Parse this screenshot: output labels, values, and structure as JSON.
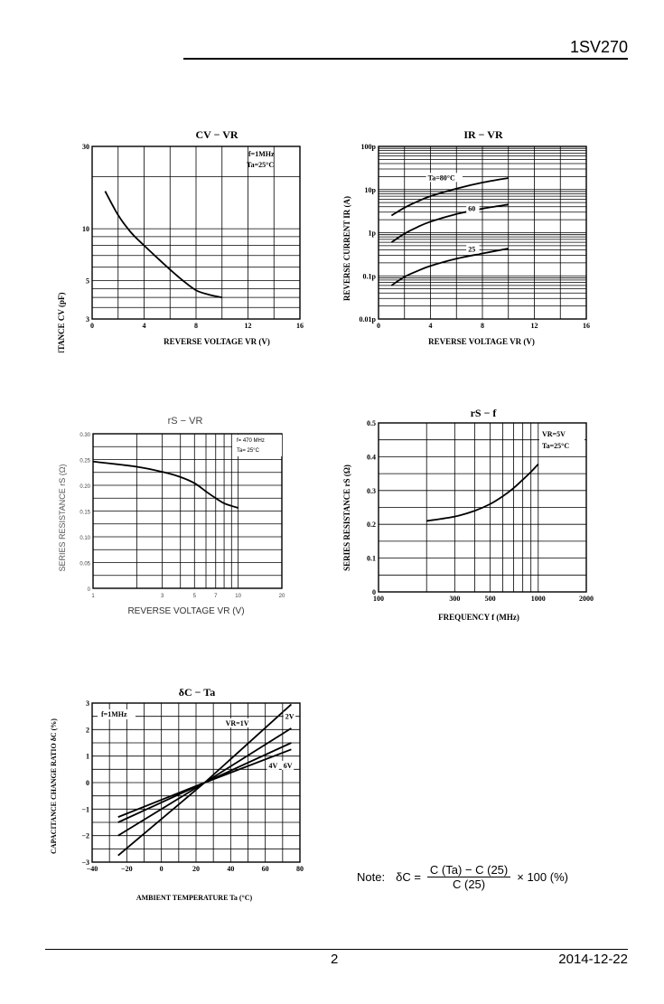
{
  "header": {
    "part_number": "1SV270"
  },
  "footer": {
    "page": "2",
    "date": "2014-12-22"
  },
  "note": {
    "prefix": "Note:",
    "lhs": "δC =",
    "numerator": "C (Ta) − C (25)",
    "denominator": "C (25)",
    "suffix": "× 100   (%)"
  },
  "chart_data": [
    {
      "id": "cv_vr",
      "type": "line",
      "title": "CV − VR",
      "xlabel": "REVERSE VOLTAGE  VR  (V)",
      "ylabel": "CAPACITANCE  CV  (pF)",
      "xlim": [
        0,
        16
      ],
      "ylim": [
        3,
        30
      ],
      "yscale": "log",
      "x_ticks": [
        "0",
        "4",
        "8",
        "12",
        "16"
      ],
      "y_ticks": [
        "3",
        "5",
        "10",
        "30"
      ],
      "conditions": [
        "f=1MHz",
        "Ta=25°C"
      ],
      "grid": true,
      "series": [
        {
          "x": [
            1,
            2,
            3,
            4,
            5,
            6,
            7,
            8,
            9,
            10
          ],
          "y": [
            16.5,
            12.0,
            9.5,
            8.0,
            6.8,
            5.8,
            5.0,
            4.4,
            4.15,
            4.0
          ]
        }
      ]
    },
    {
      "id": "ir_vr",
      "type": "line",
      "title": "IR − VR",
      "xlabel": "REVERSE VOLTAGE  VR  (V)",
      "ylabel": "REVERSE CURRENT  IR  (A)",
      "xlim": [
        0,
        16
      ],
      "ylim": [
        0.01,
        100
      ],
      "yscale": "log",
      "x_ticks": [
        "0",
        "4",
        "8",
        "12",
        "16"
      ],
      "y_ticks": [
        "0.01p",
        "0.1p",
        "1p",
        "10p",
        "100p"
      ],
      "grid": true,
      "series": [
        {
          "name": "Ta=80°C",
          "x": [
            1,
            2,
            3,
            4,
            6,
            8,
            10
          ],
          "y": [
            2.5,
            3.8,
            5.3,
            7.0,
            10.5,
            14.5,
            18.5
          ]
        },
        {
          "name": "60",
          "x": [
            1,
            2,
            3,
            4,
            6,
            8,
            10
          ],
          "y": [
            0.6,
            0.95,
            1.35,
            1.8,
            2.7,
            3.6,
            4.5
          ]
        },
        {
          "name": "25",
          "x": [
            1,
            2,
            3,
            4,
            6,
            8,
            10
          ],
          "y": [
            0.06,
            0.095,
            0.13,
            0.17,
            0.25,
            0.33,
            0.43
          ]
        }
      ]
    },
    {
      "id": "rs_vr",
      "type": "line",
      "title": "rS − VR",
      "xlabel": "REVERSE VOLTAGE  VR  (V)",
      "ylabel": "SERIES RESISTANCE  rS  (Ω)",
      "xlim": [
        1,
        20
      ],
      "ylim": [
        0,
        0.3
      ],
      "xscale": "log",
      "x_ticks": [
        "1",
        "3",
        "5",
        "7",
        "10",
        "20"
      ],
      "y_ticks": [
        "0",
        "0.05",
        "0.10",
        "0.15",
        "0.20",
        "0.25",
        "0.30"
      ],
      "conditions": [
        "f= 470 MHz",
        "Ta= 25°C"
      ],
      "grid": true,
      "series": [
        {
          "x": [
            1,
            2,
            3,
            4,
            5,
            6,
            7,
            8,
            9,
            10
          ],
          "y": [
            0.246,
            0.236,
            0.226,
            0.216,
            0.204,
            0.188,
            0.175,
            0.165,
            0.16,
            0.156
          ]
        }
      ]
    },
    {
      "id": "rs_f",
      "type": "line",
      "title": "rS − f",
      "xlabel": "FREQUENCY  f  (MHz)",
      "ylabel": "SERIES RESISTANCE  rS  (Ω)",
      "xlim": [
        100,
        2000
      ],
      "ylim": [
        0,
        0.5
      ],
      "xscale": "log",
      "x_ticks": [
        "100",
        "300",
        "500",
        "1000",
        "2000"
      ],
      "y_ticks": [
        "0",
        "0.1",
        "0.2",
        "0.3",
        "0.4",
        "0.5"
      ],
      "conditions": [
        "VR=5V",
        "Ta=25°C"
      ],
      "grid": true,
      "series": [
        {
          "x": [
            200,
            300,
            400,
            500,
            600,
            700,
            800,
            900,
            1000
          ],
          "y": [
            0.21,
            0.223,
            0.24,
            0.26,
            0.283,
            0.307,
            0.332,
            0.355,
            0.378
          ]
        }
      ]
    },
    {
      "id": "dc_ta",
      "type": "line",
      "title": "δC − Ta",
      "xlabel": "AMBIENT TEMPERATURE  Ta  (°C)",
      "ylabel": "CAPACITANCE CHANGE RATIO  δC  (%)",
      "xlim": [
        -40,
        80
      ],
      "ylim": [
        -3,
        3
      ],
      "x_ticks": [
        "−40",
        "−20",
        "0",
        "20",
        "40",
        "60",
        "80"
      ],
      "y_ticks": [
        "−3",
        "−2",
        "−1",
        "0",
        "1",
        "2",
        "3"
      ],
      "conditions": [
        "f=1MHz"
      ],
      "grid": true,
      "series": [
        {
          "name": "VR=1V",
          "x": [
            -25,
            25,
            75
          ],
          "y": [
            -2.75,
            0,
            2.95
          ]
        },
        {
          "name": "2V",
          "x": [
            -25,
            25,
            75
          ],
          "y": [
            -2.0,
            0,
            2.05
          ]
        },
        {
          "name": "4V",
          "x": [
            -25,
            25,
            75
          ],
          "y": [
            -1.5,
            0,
            1.5
          ]
        },
        {
          "name": "6V",
          "x": [
            -25,
            25,
            75
          ],
          "y": [
            -1.3,
            0,
            1.25
          ]
        }
      ]
    }
  ]
}
